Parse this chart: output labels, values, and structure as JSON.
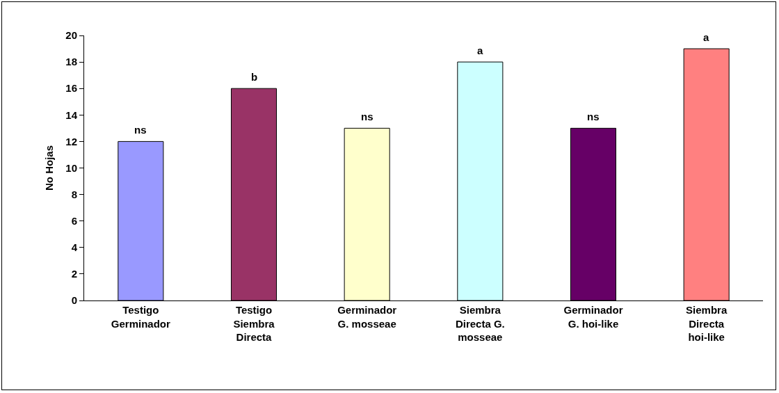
{
  "chart_data": {
    "type": "bar",
    "ylabel": "No Hojas",
    "categories": [
      "Testigo Germinador",
      "Testigo Siembra Directa",
      "Germinador G. mosseae",
      "Siembra Directa G. mosseae",
      "Germinador G. hoi-like",
      "Siembra Directa hoi-like"
    ],
    "values": [
      12,
      16,
      13,
      18,
      13,
      19
    ],
    "colors": [
      "#9999ff",
      "#993366",
      "#ffffcc",
      "#ccffff",
      "#660066",
      "#ff8080"
    ],
    "ylim": [
      0,
      20
    ],
    "yticks": [
      0,
      2,
      4,
      6,
      8,
      10,
      12,
      14,
      16,
      18,
      20
    ],
    "grid": false,
    "annotations": [
      {
        "text": "ns",
        "x": "Testigo Germinador",
        "y": 12
      },
      {
        "text": "b",
        "x": "Testigo Siembra Directa",
        "y": 16
      },
      {
        "text": "ns",
        "x": "Germinador G. mosseae",
        "y": 13
      },
      {
        "text": "a",
        "x": "Siembra Directa G. mosseae",
        "y": 18
      },
      {
        "text": "ns",
        "x": "Germinador G. hoi-like",
        "y": 13
      },
      {
        "text": "a",
        "x": "Siembra Directa hoi-like",
        "y": 19
      }
    ]
  }
}
